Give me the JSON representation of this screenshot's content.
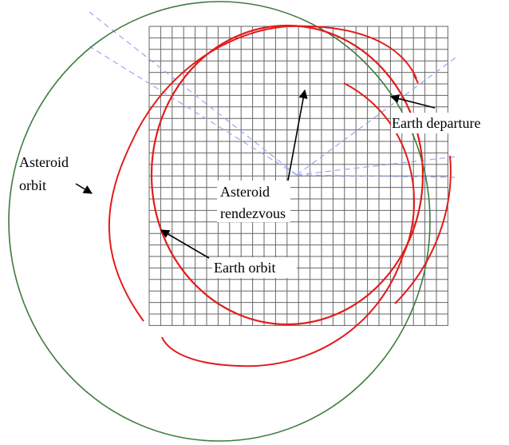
{
  "labels": {
    "earth_departure": "Earth departure",
    "asteroid_orbit_line1": "Asteroid",
    "asteroid_orbit_line2": "orbit",
    "asteroid_rendezvous_line1": "Asteroid",
    "asteroid_rendezvous_line2": "rendezvous",
    "earth_orbit": "Earth orbit"
  },
  "colors": {
    "earth_orbit": "#e31b1b",
    "trajectory": "#e31b1b",
    "asteroid_orbit": "#3f7a3f",
    "grid": "#666666",
    "sight_lines": "#9aa6f0",
    "arrows": "#000000"
  }
}
